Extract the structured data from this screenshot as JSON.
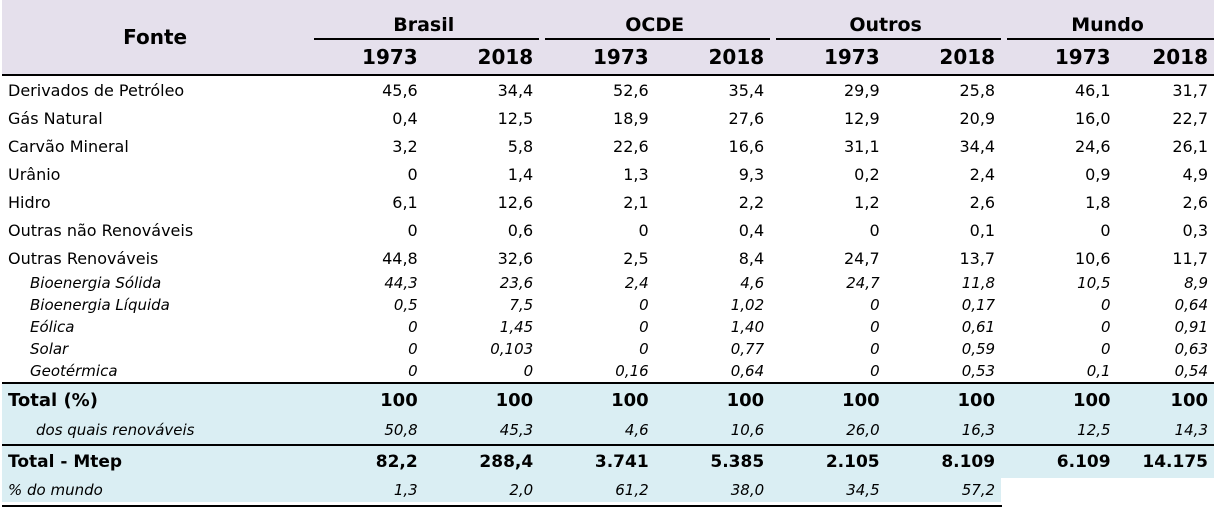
{
  "header": {
    "fonte": "Fonte",
    "groups": [
      "Brasil",
      "OCDE",
      "Outros",
      "Mundo"
    ],
    "years": [
      "1973",
      "2018",
      "1973",
      "2018",
      "1973",
      "2018",
      "1973",
      "2018"
    ]
  },
  "rows": [
    {
      "label": "Derivados de Petróleo",
      "values": [
        "45,6",
        "34,4",
        "52,6",
        "35,4",
        "29,9",
        "25,8",
        "46,1",
        "31,7"
      ]
    },
    {
      "label": "Gás Natural",
      "values": [
        "0,4",
        "12,5",
        "18,9",
        "27,6",
        "12,9",
        "20,9",
        "16,0",
        "22,7"
      ]
    },
    {
      "label": "Carvão Mineral",
      "values": [
        "3,2",
        "5,8",
        "22,6",
        "16,6",
        "31,1",
        "34,4",
        "24,6",
        "26,1"
      ]
    },
    {
      "label": "Urânio",
      "values": [
        "0",
        "1,4",
        "1,3",
        "9,3",
        "0,2",
        "2,4",
        "0,9",
        "4,9"
      ]
    },
    {
      "label": "Hidro",
      "values": [
        "6,1",
        "12,6",
        "2,1",
        "2,2",
        "1,2",
        "2,6",
        "1,8",
        "2,6"
      ]
    },
    {
      "label": "Outras não Renováveis",
      "values": [
        "0",
        "0,6",
        "0",
        "0,4",
        "0",
        "0,1",
        "0",
        "0,3"
      ]
    },
    {
      "label": "Outras Renováveis",
      "values": [
        "44,8",
        "32,6",
        "2,5",
        "8,4",
        "24,7",
        "13,7",
        "10,6",
        "11,7"
      ]
    }
  ],
  "subrows": [
    {
      "label": "Bioenergia Sólida",
      "values": [
        "44,3",
        "23,6",
        "2,4",
        "4,6",
        "24,7",
        "11,8",
        "10,5",
        "8,9"
      ]
    },
    {
      "label": "Bioenergia Líquida",
      "values": [
        "0,5",
        "7,5",
        "0",
        "1,02",
        "0",
        "0,17",
        "0",
        "0,64"
      ]
    },
    {
      "label": "Eólica",
      "values": [
        "0",
        "1,45",
        "0",
        "1,40",
        "0",
        "0,61",
        "0",
        "0,91"
      ]
    },
    {
      "label": "Solar",
      "values": [
        "0",
        "0,103",
        "0",
        "0,77",
        "0",
        "0,59",
        "0",
        "0,63"
      ]
    },
    {
      "label": "Geotérmica",
      "values": [
        "0",
        "0",
        "0,16",
        "0,64",
        "0",
        "0,53",
        "0,1",
        "0,54"
      ]
    }
  ],
  "total": {
    "label": "Total (%)",
    "values": [
      "100",
      "100",
      "100",
      "100",
      "100",
      "100",
      "100",
      "100"
    ]
  },
  "renewables": {
    "label": "dos quais renováveis",
    "values": [
      "50,8",
      "45,3",
      "4,6",
      "10,6",
      "26,0",
      "16,3",
      "12,5",
      "14,3"
    ]
  },
  "total_mtep": {
    "label": "Total - Mtep",
    "values": [
      "82,2",
      "288,4",
      "3.741",
      "5.385",
      "2.105",
      "8.109",
      "6.109",
      "14.175"
    ]
  },
  "pct_world": {
    "label": "% do mundo",
    "values": [
      "1,3",
      "2,0",
      "61,2",
      "38,0",
      "34,5",
      "57,2"
    ]
  },
  "colors": {
    "header_bg": "#e5e0ec",
    "total_bg": "#daeef3"
  }
}
